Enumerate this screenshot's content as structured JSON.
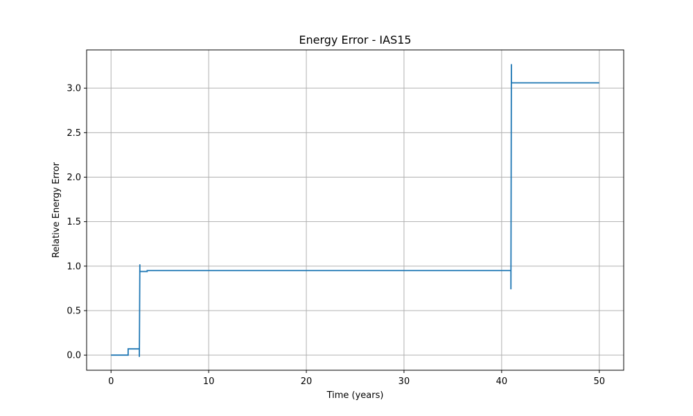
{
  "chart_data": {
    "type": "line",
    "title": "Energy Error - IAS15",
    "xlabel": "Time (years)",
    "ylabel": "Relative Energy Error",
    "xlim": [
      -2.5,
      52.5
    ],
    "ylim": [
      -0.17,
      3.43
    ],
    "xticks": [
      0,
      10,
      20,
      30,
      40,
      50
    ],
    "yticks": [
      0.0,
      0.5,
      1.0,
      1.5,
      2.0,
      2.5,
      3.0
    ],
    "xtick_labels": [
      "0",
      "10",
      "20",
      "30",
      "40",
      "50"
    ],
    "ytick_labels": [
      "0.0",
      "0.5",
      "1.0",
      "1.5",
      "2.0",
      "2.5",
      "3.0"
    ],
    "grid": true,
    "color": "#1f77b4",
    "series": [
      {
        "x": [
          0,
          1.75,
          1.75,
          2.9,
          2.9,
          2.95,
          2.95,
          3.0,
          3.0,
          3.7,
          3.7,
          40.95,
          40.95,
          41.0,
          41.0,
          41.05,
          41.05,
          50.0
        ],
        "values": [
          0.0,
          0.0,
          0.07,
          0.07,
          -0.02,
          1.02,
          0.94,
          0.94,
          0.94,
          0.94,
          0.95,
          0.95,
          0.74,
          3.27,
          3.06,
          3.06,
          3.06,
          3.06
        ]
      }
    ]
  }
}
